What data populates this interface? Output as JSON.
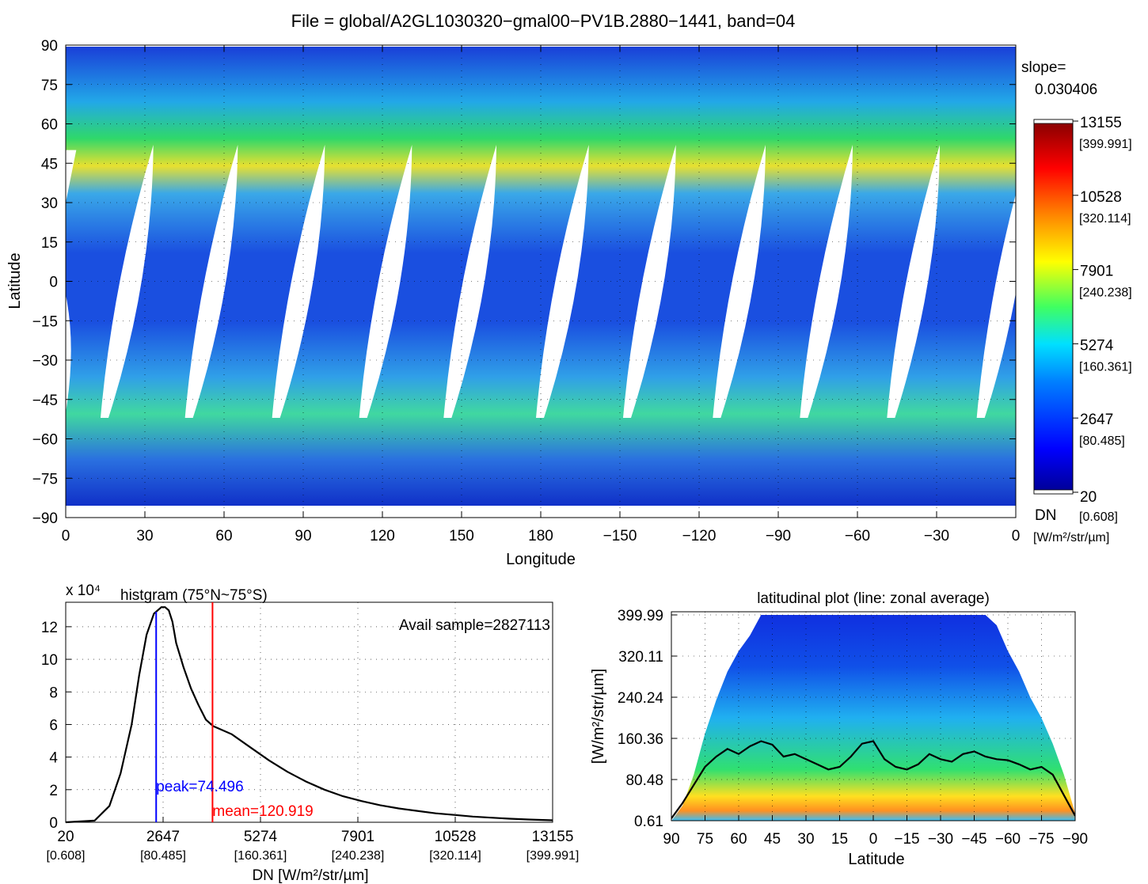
{
  "figure_title": "File = global/A2GL1030320−gmal00−PV1B.2880−1441, band=04",
  "colors": {
    "map_blue": "#1f4fe0",
    "peak_line": "#0000ff",
    "mean_line": "#ff0000",
    "curve": "#000000"
  },
  "chart_data": [
    {
      "type": "heatmap",
      "name": "global-map",
      "xlabel": "Longitude",
      "ylabel": "Latitude",
      "x_ticks": [
        "0",
        "30",
        "60",
        "90",
        "120",
        "150",
        "180",
        "−150",
        "−120",
        "−90",
        "−60",
        "−30",
        "0"
      ],
      "y_ticks": [
        "90",
        "75",
        "60",
        "45",
        "30",
        "15",
        "0",
        "−15",
        "−30",
        "−45",
        "−60",
        "−75",
        "−90"
      ],
      "swath_gap_centers_lon": [
        25,
        57,
        90,
        123,
        155,
        190,
        223,
        257,
        290,
        323,
        357
      ],
      "slope_label": "slope=",
      "slope_value": "0.030406",
      "colorbar": {
        "dn_ticks": [
          "13155",
          "10528",
          "7901",
          "5274",
          "2647",
          "20"
        ],
        "rad_ticks": [
          "[399.991]",
          "[320.114]",
          "[240.238]",
          "[160.361]",
          "[80.485]",
          "[0.608]"
        ],
        "dn_label": "DN",
        "unit_label": "[W/m²/str/µm]",
        "colors": [
          "#00008f",
          "#0000ff",
          "#0080ff",
          "#00ffff",
          "#80ff80",
          "#ffff00",
          "#ff8000",
          "#ff0000",
          "#800000"
        ]
      },
      "grid": true
    },
    {
      "type": "line",
      "name": "histogram",
      "title": "histgram (75°N~75°S)",
      "multiplier": "x 10⁴",
      "annotation": "Avail sample=2827113",
      "xlabel": "DN [W/m²/str/µm]",
      "xlim": [
        20,
        13155
      ],
      "ylim": [
        0,
        13.5
      ],
      "x_ticks_dn": [
        "20",
        "2647",
        "5274",
        "7901",
        "10528",
        "13155"
      ],
      "x_ticks_rad": [
        "[0.608]",
        "[80.485]",
        "[160.361]",
        "[240.238]",
        "[320.114]",
        "[399.991]"
      ],
      "y_ticks": [
        "0",
        "2",
        "4",
        "6",
        "8",
        "10",
        "12"
      ],
      "series": [
        {
          "x": [
            20,
            800,
            1200,
            1500,
            1800,
            2000,
            2200,
            2400,
            2500,
            2600,
            2700,
            2800,
            2900,
            3000,
            3200,
            3400,
            3600,
            3800,
            4000,
            4200,
            4500,
            5000,
            5500,
            6000,
            6500,
            7000,
            7500,
            8000,
            8500,
            9000,
            9500,
            10000,
            10500,
            11000,
            11500,
            12000,
            12500,
            13155
          ],
          "y": [
            0,
            0.1,
            1.0,
            3.0,
            6.0,
            9.0,
            11.5,
            12.8,
            13.0,
            13.2,
            13.2,
            13.0,
            12.3,
            11.0,
            9.5,
            8.2,
            7.2,
            6.3,
            5.9,
            5.7,
            5.4,
            4.6,
            3.8,
            3.1,
            2.5,
            2.0,
            1.6,
            1.3,
            1.05,
            0.85,
            0.7,
            0.55,
            0.45,
            0.35,
            0.28,
            0.22,
            0.17,
            0.12
          ]
        }
      ],
      "peak": {
        "dn": 2460,
        "label": "peak=74.496"
      },
      "mean": {
        "dn": 3980,
        "label": "mean=120.919"
      },
      "grid": true
    },
    {
      "type": "heatmap",
      "name": "latitudinal-plot",
      "title": "latitudinal plot (line: zonal average)",
      "xlabel": "Latitude",
      "ylabel": "[W/m²/str/µm]",
      "x_ticks": [
        "90",
        "75",
        "60",
        "45",
        "30",
        "15",
        "0",
        "−15",
        "−30",
        "−45",
        "−60",
        "−75",
        "−90"
      ],
      "y_ticks": [
        "0.61",
        "80.48",
        "160.36",
        "240.24",
        "320.11",
        "399.99"
      ],
      "ylim": [
        0.61,
        399.99
      ],
      "zonal_average": {
        "lat": [
          90,
          85,
          80,
          75,
          70,
          65,
          60,
          55,
          50,
          45,
          40,
          35,
          30,
          25,
          20,
          15,
          10,
          5,
          0,
          -5,
          -10,
          -15,
          -20,
          -25,
          -30,
          -35,
          -40,
          -45,
          -50,
          -55,
          -60,
          -65,
          -70,
          -75,
          -80,
          -85,
          -90
        ],
        "value": [
          5,
          35,
          70,
          105,
          125,
          140,
          130,
          145,
          155,
          148,
          125,
          130,
          120,
          110,
          100,
          105,
          125,
          150,
          155,
          120,
          105,
          100,
          110,
          130,
          120,
          115,
          130,
          135,
          125,
          120,
          118,
          110,
          100,
          105,
          90,
          50,
          10
        ]
      },
      "grid": true
    }
  ]
}
